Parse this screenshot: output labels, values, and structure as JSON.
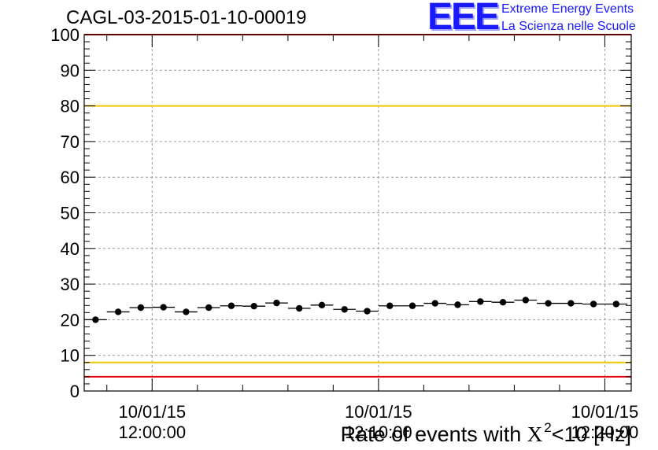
{
  "chart_data": {
    "type": "scatter",
    "title": "CAGL-03-2015-01-10-00019",
    "xlabel": {
      "prefix": "Rate of events with ",
      "symbol": "X",
      "superscript": "2",
      "suffix": "<10 [Hz]"
    },
    "ylabel": "",
    "ylim": [
      0,
      100
    ],
    "yticks": [
      0,
      10,
      20,
      30,
      40,
      50,
      60,
      70,
      80,
      90,
      100
    ],
    "xlim": [
      "2015-01-10 11:57:00",
      "2015-01-10 12:21:10"
    ],
    "x_tick_labels": [
      {
        "time": "2015-01-10 12:00:00",
        "line1": "10/01/15",
        "line2": "12:00:00"
      },
      {
        "time": "2015-01-10 12:10:00",
        "line1": "10/01/15",
        "line2": "12:10:00"
      },
      {
        "time": "2015-01-10 12:20:00",
        "line1": "10/01/15",
        "line2": "12:20:00"
      }
    ],
    "grid": true,
    "reference_lines": [
      {
        "y": 80,
        "color": "#f0c800"
      },
      {
        "y": 8,
        "color": "#f0c800"
      },
      {
        "y": 100,
        "color": "#e8000b"
      },
      {
        "y": 4,
        "color": "#e8000b"
      }
    ],
    "series": [
      {
        "marker_color": "#000000",
        "x_start": "2015-01-10 11:57:00",
        "bin_width_s": 60,
        "values": [
          20.0,
          22.2,
          23.4,
          23.5,
          22.2,
          23.4,
          23.9,
          23.8,
          24.7,
          23.2,
          24.1,
          22.9,
          22.4,
          23.9,
          23.9,
          24.6,
          24.2,
          25.1,
          24.9,
          25.5,
          24.6,
          24.6,
          24.4,
          24.4
        ]
      }
    ]
  },
  "logo": {
    "mark": "EEE",
    "line1": "Extreme Energy Events",
    "line2": "La Scienza nelle Scuole"
  }
}
